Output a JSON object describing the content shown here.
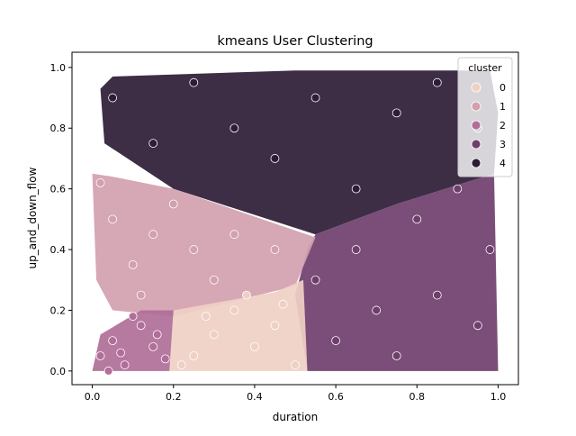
{
  "chart_data": {
    "type": "scatter",
    "title": "kmeans User Clustering",
    "xlabel": "duration",
    "ylabel": "up_and_down_flow",
    "xlim": [
      -0.05,
      1.05
    ],
    "ylim": [
      -0.045,
      1.05
    ],
    "xticks": [
      "0.0",
      "0.2",
      "0.4",
      "0.6",
      "0.8",
      "1.0"
    ],
    "yticks": [
      "0.0",
      "0.2",
      "0.4",
      "0.6",
      "0.8",
      "1.0"
    ],
    "legend": {
      "title": "cluster",
      "placement": "top-right"
    },
    "grid": false,
    "series": [
      {
        "name": "0",
        "color": "#efd0c4",
        "points": [
          [
            0.25,
            0.05
          ],
          [
            0.3,
            0.12
          ],
          [
            0.35,
            0.2
          ],
          [
            0.4,
            0.08
          ],
          [
            0.45,
            0.15
          ],
          [
            0.22,
            0.02
          ],
          [
            0.5,
            0.02
          ],
          [
            0.38,
            0.25
          ],
          [
            0.28,
            0.18
          ],
          [
            0.47,
            0.22
          ]
        ]
      },
      {
        "name": "1",
        "color": "#d3a0ae",
        "points": [
          [
            0.05,
            0.5
          ],
          [
            0.1,
            0.35
          ],
          [
            0.15,
            0.45
          ],
          [
            0.2,
            0.55
          ],
          [
            0.25,
            0.4
          ],
          [
            0.3,
            0.3
          ],
          [
            0.35,
            0.45
          ],
          [
            0.02,
            0.62
          ],
          [
            0.12,
            0.25
          ],
          [
            0.45,
            0.4
          ]
        ]
      },
      {
        "name": "2",
        "color": "#b06e98",
        "points": [
          [
            0.02,
            0.05
          ],
          [
            0.05,
            0.1
          ],
          [
            0.08,
            0.02
          ],
          [
            0.12,
            0.15
          ],
          [
            0.15,
            0.08
          ],
          [
            0.18,
            0.04
          ],
          [
            0.1,
            0.18
          ],
          [
            0.04,
            0.0
          ],
          [
            0.16,
            0.12
          ],
          [
            0.07,
            0.06
          ]
        ]
      },
      {
        "name": "3",
        "color": "#6f3f6c",
        "points": [
          [
            0.55,
            0.3
          ],
          [
            0.6,
            0.1
          ],
          [
            0.65,
            0.4
          ],
          [
            0.7,
            0.2
          ],
          [
            0.75,
            0.05
          ],
          [
            0.8,
            0.5
          ],
          [
            0.85,
            0.25
          ],
          [
            0.9,
            0.6
          ],
          [
            0.95,
            0.15
          ],
          [
            0.98,
            0.4
          ]
        ]
      },
      {
        "name": "4",
        "color": "#2c1c36",
        "points": [
          [
            0.05,
            0.9
          ],
          [
            0.15,
            0.75
          ],
          [
            0.25,
            0.95
          ],
          [
            0.35,
            0.8
          ],
          [
            0.45,
            0.7
          ],
          [
            0.55,
            0.9
          ],
          [
            0.65,
            0.6
          ],
          [
            0.75,
            0.85
          ],
          [
            0.85,
            0.95
          ],
          [
            0.95,
            0.8
          ]
        ]
      }
    ]
  }
}
